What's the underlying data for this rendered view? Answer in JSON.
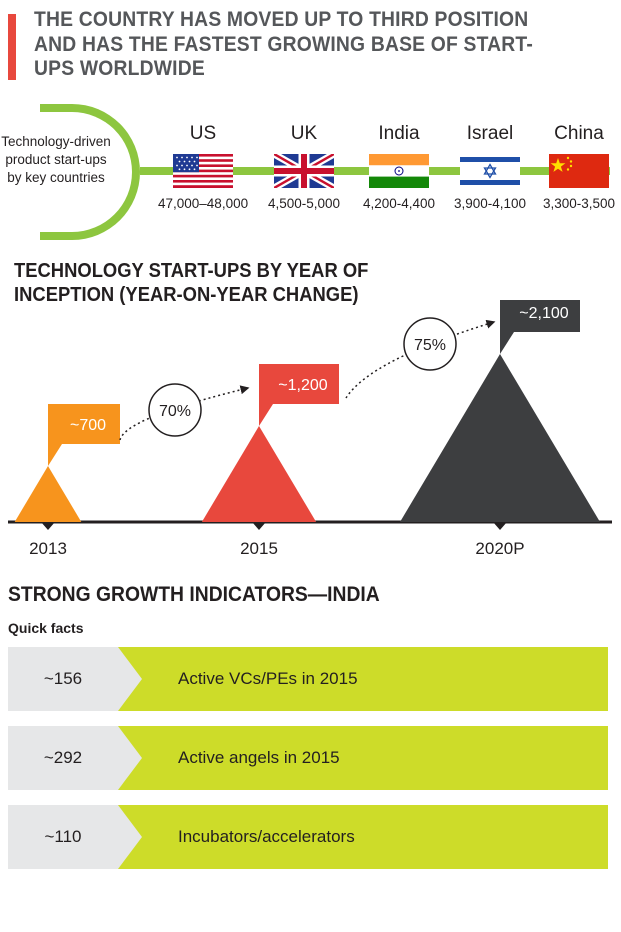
{
  "header": {
    "title": "THE COUNTRY HAS MOVED UP TO THIRD POSITION AND HAS THE FASTEST GROWING BASE OF START-UPS WORLDWIDE",
    "accent_color": "#e8483d"
  },
  "countries": {
    "label": "Technology-driven product start-ups by key countries",
    "line_color": "#8dc63f",
    "items": [
      {
        "name": "US",
        "range": "47,000–48,000",
        "flag": "us-flag-icon"
      },
      {
        "name": "UK",
        "range": "4,500-5,000",
        "flag": "uk-flag-icon"
      },
      {
        "name": "India",
        "range": "4,200-4,400",
        "flag": "india-flag-icon"
      },
      {
        "name": "Israel",
        "range": "3,900-4,100",
        "flag": "israel-flag-icon"
      },
      {
        "name": "China",
        "range": "3,300-3,500",
        "flag": "china-flag-icon"
      }
    ]
  },
  "chart_data": {
    "type": "bar",
    "title": "TECHNOLOGY START-UPS BY YEAR OF INCEPTION (YEAR-ON-YEAR CHANGE)",
    "categories": [
      "2013",
      "2015",
      "2020P"
    ],
    "values": [
      700,
      1200,
      2100
    ],
    "value_labels": [
      "~700",
      "~1,200",
      "~2,100"
    ],
    "changes": [
      "70%",
      "75%"
    ],
    "colors": [
      "#f7941d",
      "#e8483d",
      "#3d3e40"
    ]
  },
  "growth": {
    "title": "STRONG GROWTH INDICATORS—INDIA",
    "subtitle": "Quick facts",
    "facts": [
      {
        "value": "~156",
        "label": "Active VCs/PEs in 2015"
      },
      {
        "value": "~292",
        "label": "Active angels in 2015"
      },
      {
        "value": "~110",
        "label": "Incubators/accelerators"
      }
    ],
    "fact_color": "#cddc29",
    "value_bg": "#e6e7e8"
  }
}
